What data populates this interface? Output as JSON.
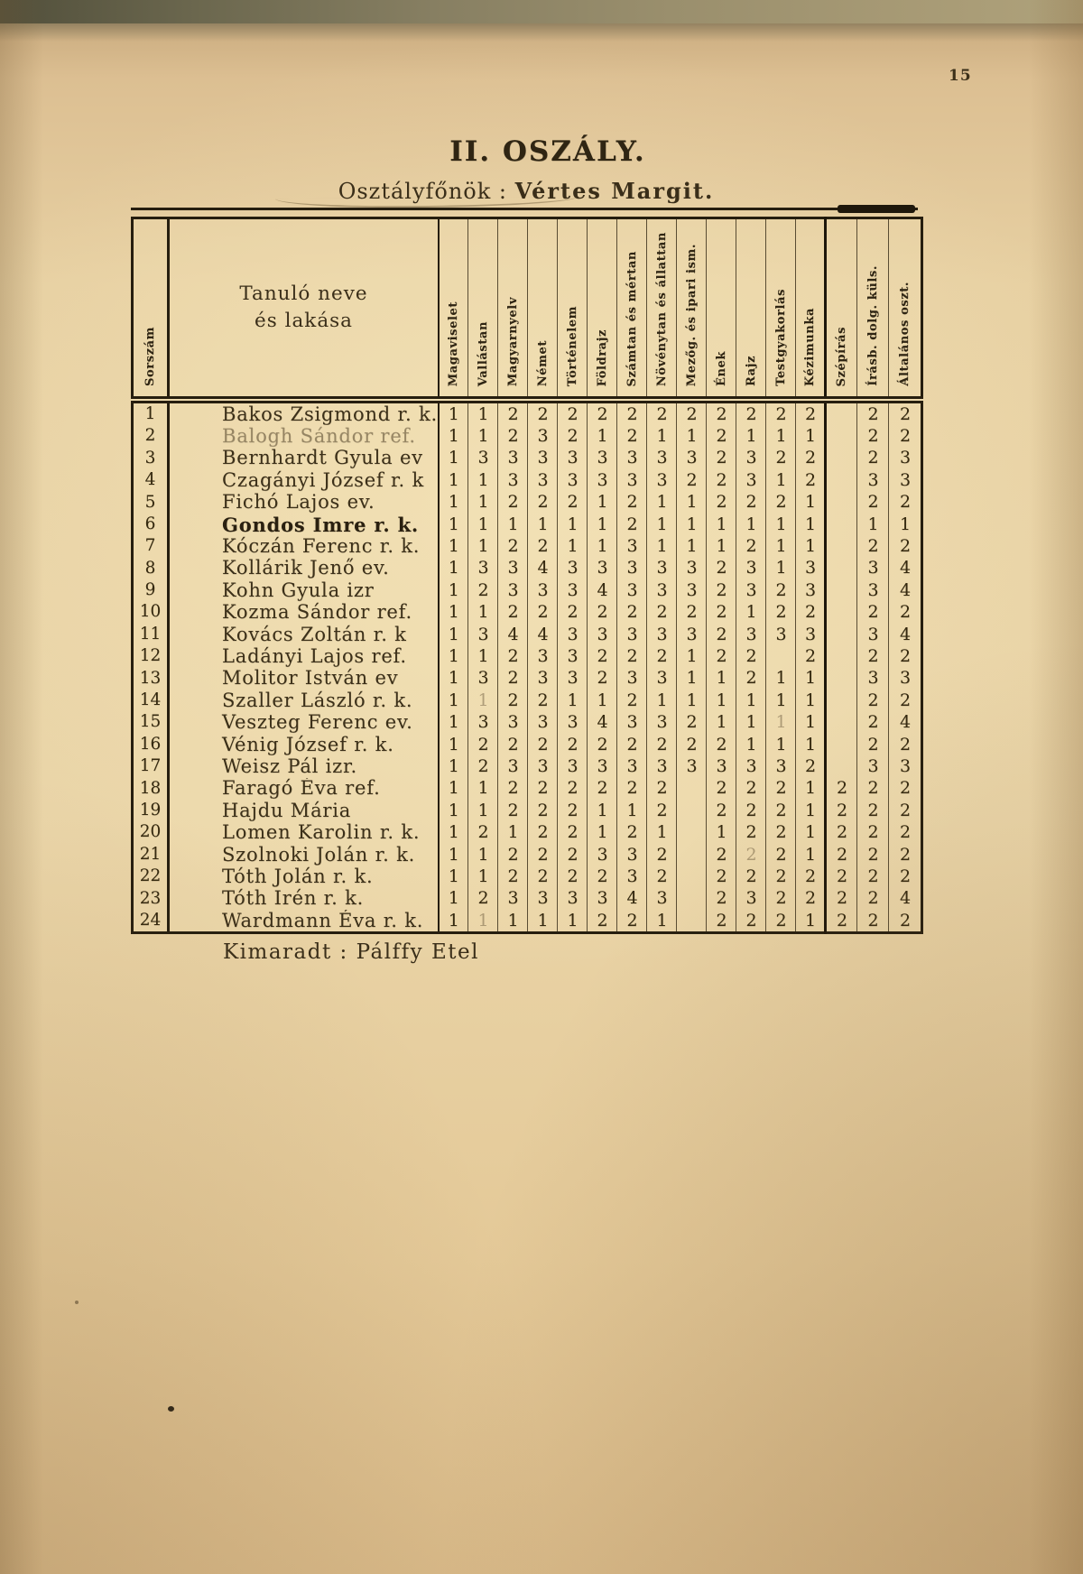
{
  "page": {
    "number": "15",
    "title": "II. OSZÁLY.",
    "teacher_label": "Osztályfőnök :",
    "teacher_name": "Vértes Margit.",
    "footer_note": "Kimaradt : Pálffy Etel"
  },
  "table": {
    "row_number_header": "Sorszám",
    "name_header": [
      "Tanuló neve",
      "és lakása"
    ],
    "subject_headers": [
      "Magaviselet",
      "Vallástan",
      "Magyarnyelv",
      "Német",
      "Történelem",
      "Földrajz",
      "Számtan és mértan",
      "Növénytan és állattan",
      "Mezőg. és ipari ism.",
      "Ének",
      "Rajz",
      "Testgyakorlás",
      "Kézimunka",
      "Szépírás",
      "Írásb. dolg. küls.",
      "Általános oszt."
    ],
    "rows": [
      {
        "num": "1",
        "name": "Bakos Zsigmond r. k.",
        "grades": [
          "1",
          "1",
          "2",
          "2",
          "2",
          "2",
          "2",
          "2",
          "2",
          "2",
          "2",
          "2",
          "2",
          "",
          "2",
          "2"
        ]
      },
      {
        "num": "2",
        "name": "Balogh Sándor ref.",
        "faded": true,
        "grades": [
          "1",
          "1",
          "2",
          "3",
          "2",
          "1",
          "2",
          "1",
          "1",
          "2",
          "1",
          "1",
          "1",
          "",
          "2",
          "2"
        ]
      },
      {
        "num": "3",
        "name": "Bernhardt Gyula ev",
        "grades": [
          "1",
          "3",
          "3",
          "3",
          "3",
          "3",
          "3",
          "3",
          "3",
          "2",
          "3",
          "2",
          "2",
          "",
          "2",
          "3"
        ]
      },
      {
        "num": "4",
        "name": "Czagányi József r. k",
        "grades": [
          "1",
          "1",
          "3",
          "3",
          "3",
          "3",
          "3",
          "3",
          "2",
          "2",
          "3",
          "1",
          "2",
          "",
          "3",
          "3"
        ]
      },
      {
        "num": "5",
        "name": "Fichó Lajos ev.",
        "grades": [
          "1",
          "1",
          "2",
          "2",
          "2",
          "1",
          "2",
          "1",
          "1",
          "2",
          "2",
          "2",
          "1",
          "",
          "2",
          "2"
        ]
      },
      {
        "num": "6",
        "name": "Gondos Imre r. k.",
        "bold": true,
        "grades": [
          "1",
          "1",
          "1",
          "1",
          "1",
          "1",
          "2",
          "1",
          "1",
          "1",
          "1",
          "1",
          "1",
          "",
          "1",
          "1"
        ]
      },
      {
        "num": "7",
        "name": "Kóczán Ferenc r. k.",
        "grades": [
          "1",
          "1",
          "2",
          "2",
          "1",
          "1",
          "3",
          "1",
          "1",
          "1",
          "2",
          "1",
          "1",
          "",
          "2",
          "2"
        ]
      },
      {
        "num": "8",
        "name": "Kollárik Jenő ev.",
        "grades": [
          "1",
          "3",
          "3",
          "4",
          "3",
          "3",
          "3",
          "3",
          "3",
          "2",
          "3",
          "1",
          "3",
          "",
          "3",
          "4"
        ]
      },
      {
        "num": "9",
        "name": "Kohn Gyula izr",
        "grades": [
          "1",
          "2",
          "3",
          "3",
          "3",
          "4",
          "3",
          "3",
          "3",
          "2",
          "3",
          "2",
          "3",
          "",
          "3",
          "4"
        ]
      },
      {
        "num": "10",
        "name": "Kozma Sándor ref.",
        "grades": [
          "1",
          "1",
          "2",
          "2",
          "2",
          "2",
          "2",
          "2",
          "2",
          "2",
          "1",
          "2",
          "2",
          "",
          "2",
          "2"
        ]
      },
      {
        "num": "11",
        "name": "Kovács Zoltán r. k",
        "grades": [
          "1",
          "3",
          "4",
          "4",
          "3",
          "3",
          "3",
          "3",
          "3",
          "2",
          "3",
          "3",
          "3",
          "",
          "3",
          "4"
        ]
      },
      {
        "num": "12",
        "name": "Ladányi Lajos ref.",
        "grades": [
          "1",
          "1",
          "2",
          "3",
          "3",
          "2",
          "2",
          "2",
          "1",
          "2",
          "2",
          "",
          "2",
          "",
          "2",
          "2"
        ]
      },
      {
        "num": "13",
        "name": "Molitor István ev",
        "grades": [
          "1",
          "3",
          "2",
          "3",
          "3",
          "2",
          "3",
          "3",
          "1",
          "1",
          "2",
          "1",
          "1",
          "",
          "3",
          "3"
        ]
      },
      {
        "num": "14",
        "name": "Szaller László r. k.",
        "faint": [
          1
        ],
        "grades": [
          "1",
          "1",
          "2",
          "2",
          "1",
          "1",
          "2",
          "1",
          "1",
          "1",
          "1",
          "1",
          "1",
          "",
          "2",
          "2"
        ]
      },
      {
        "num": "15",
        "name": "Veszteg Ferenc ev.",
        "faint": [
          11
        ],
        "grades": [
          "1",
          "3",
          "3",
          "3",
          "3",
          "4",
          "3",
          "3",
          "2",
          "1",
          "1",
          "1",
          "1",
          "",
          "2",
          "4"
        ]
      },
      {
        "num": "16",
        "name": "Vénig József r. k.",
        "grades": [
          "1",
          "2",
          "2",
          "2",
          "2",
          "2",
          "2",
          "2",
          "2",
          "2",
          "1",
          "1",
          "1",
          "",
          "2",
          "2"
        ]
      },
      {
        "num": "17",
        "name": "Weisz Pál izr.",
        "grades": [
          "1",
          "2",
          "3",
          "3",
          "3",
          "3",
          "3",
          "3",
          "3",
          "3",
          "3",
          "3",
          "2",
          "",
          "3",
          "3"
        ]
      },
      {
        "num": "18",
        "name": "Faragó Éva ref.",
        "grades": [
          "1",
          "1",
          "2",
          "2",
          "2",
          "2",
          "2",
          "2",
          "",
          "2",
          "2",
          "2",
          "1",
          "2",
          "2",
          "2"
        ]
      },
      {
        "num": "19",
        "name": "Hajdu Mária",
        "grades": [
          "1",
          "1",
          "2",
          "2",
          "2",
          "1",
          "1",
          "2",
          "",
          "2",
          "2",
          "2",
          "1",
          "2",
          "2",
          "2"
        ]
      },
      {
        "num": "20",
        "name": "Lomen Karolin r. k.",
        "grades": [
          "1",
          "2",
          "1",
          "2",
          "2",
          "1",
          "2",
          "1",
          "",
          "1",
          "2",
          "2",
          "1",
          "2",
          "2",
          "2"
        ]
      },
      {
        "num": "21",
        "name": "Szolnoki Jolán r. k.",
        "faint": [
          10
        ],
        "grades": [
          "1",
          "1",
          "2",
          "2",
          "2",
          "3",
          "3",
          "2",
          "",
          "2",
          "2",
          "2",
          "1",
          "2",
          "2",
          "2"
        ]
      },
      {
        "num": "22",
        "name": "Tóth Jolán r. k.",
        "grades": [
          "1",
          "1",
          "2",
          "2",
          "2",
          "2",
          "3",
          "2",
          "",
          "2",
          "2",
          "2",
          "2",
          "2",
          "2",
          "2"
        ]
      },
      {
        "num": "23",
        "name": "Tóth Irén r. k.",
        "grades": [
          "1",
          "2",
          "3",
          "3",
          "3",
          "3",
          "4",
          "3",
          "",
          "2",
          "3",
          "2",
          "2",
          "2",
          "2",
          "4"
        ]
      },
      {
        "num": "24",
        "name": "Wardmann Éva r. k.",
        "faint": [
          1
        ],
        "grades": [
          "1",
          "1",
          "1",
          "1",
          "1",
          "2",
          "2",
          "1",
          "",
          "2",
          "2",
          "2",
          "1",
          "2",
          "2",
          "2"
        ]
      }
    ]
  }
}
